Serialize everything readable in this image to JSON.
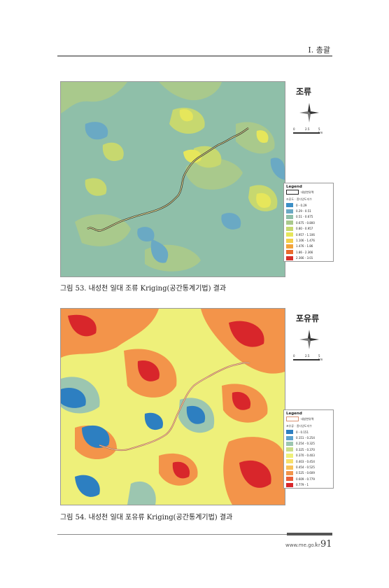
{
  "header": {
    "chapter": "I. 총괄"
  },
  "figure1": {
    "map_title": "조류",
    "scale_labels": [
      "0",
      "2.5",
      "5 km"
    ],
    "legend_title": "Legend",
    "legend_river": "내성천유역",
    "legend_subtitle": "조류도 · 종다양도지수",
    "classes": [
      {
        "label": "0 - 0.29",
        "color": "#3c8fc6"
      },
      {
        "label": "0.29 - 0.51",
        "color": "#6aa9c4"
      },
      {
        "label": "0.51 - 0.675",
        "color": "#8fbfa9"
      },
      {
        "label": "0.675 - 0.800",
        "color": "#a9c98c"
      },
      {
        "label": "0.80 - 0.957",
        "color": "#c7d86f"
      },
      {
        "label": "0.957 - 1.106",
        "color": "#e6e65b"
      },
      {
        "label": "1.106 - 1.476",
        "color": "#f3cf4b"
      },
      {
        "label": "1.476 - 1.86",
        "color": "#f2a43b"
      },
      {
        "label": "1.86 - 2.366",
        "color": "#ea6a2d"
      },
      {
        "label": "2.366 - 3.01",
        "color": "#d7302a"
      }
    ],
    "caption": "그림 53. 내성천 일대 조류 Kriging(공간통계기법) 결과"
  },
  "figure2": {
    "map_title": "포유류",
    "scale_labels": [
      "0",
      "2.5",
      "5 km"
    ],
    "legend_title": "Legend",
    "legend_river": "내성천유역",
    "legend_subtitle": "포유류 · 종다양도지수",
    "classes": [
      {
        "label": "0 - 0.151",
        "color": "#2d7fc1"
      },
      {
        "label": "0.151 - 0.254",
        "color": "#5ea3cf"
      },
      {
        "label": "0.254 - 0.325",
        "color": "#9cc6b0"
      },
      {
        "label": "0.325 - 0.370",
        "color": "#c9de8a"
      },
      {
        "label": "0.370 - 0.403",
        "color": "#eef07a"
      },
      {
        "label": "0.403 - 0.454",
        "color": "#f7e06a"
      },
      {
        "label": "0.454 - 0.525",
        "color": "#f8c25a"
      },
      {
        "label": "0.525 - 0.609",
        "color": "#f3944a"
      },
      {
        "label": "0.609 - 0.779",
        "color": "#e9603a"
      },
      {
        "label": "0.779 - 1",
        "color": "#d8262b"
      }
    ],
    "caption": "그림 54. 내성천 일대 포유류 Kriging(공간통계기법) 결과"
  },
  "footer": {
    "url": "www.me.go.kr",
    "separator": "I",
    "page_number": "91"
  }
}
